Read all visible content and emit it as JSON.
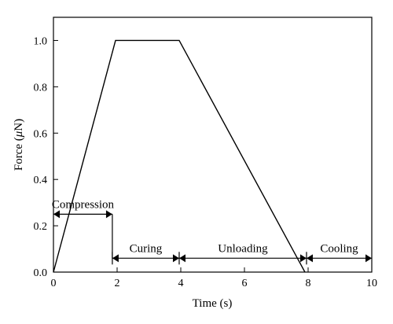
{
  "chart_data": {
    "type": "line",
    "xlabel_text": "Time (s)",
    "ylabel_prefix": "Force (",
    "ylabel_unit_greek": "μ",
    "ylabel_suffix": "N)",
    "xlim": [
      0,
      10
    ],
    "ylim": [
      0,
      1.1
    ],
    "x_ticks": [
      "0",
      "2",
      "4",
      "6",
      "8",
      "10"
    ],
    "y_ticks": [
      "0.0",
      "0.2",
      "0.4",
      "0.6",
      "0.8",
      "1.0"
    ],
    "grid": false,
    "series": [
      {
        "x": [
          0,
          1.95,
          3.95,
          7.9
        ],
        "y": [
          0,
          1.0,
          1.0,
          0
        ]
      }
    ],
    "annotations": [
      {
        "label": "Compression",
        "start": 0,
        "end": 1.85,
        "y": 0.25
      },
      {
        "label": "Curing",
        "start": 1.85,
        "end": 3.95,
        "y": 0.06
      },
      {
        "label": "Unloading",
        "start": 3.95,
        "end": 7.95,
        "y": 0.06
      },
      {
        "label": "Cooling",
        "start": 7.95,
        "end": 10,
        "y": 0.06
      }
    ],
    "phase_divider": {
      "x": 1.85,
      "y_top": 0.25,
      "y_bottom": 0.06
    }
  }
}
